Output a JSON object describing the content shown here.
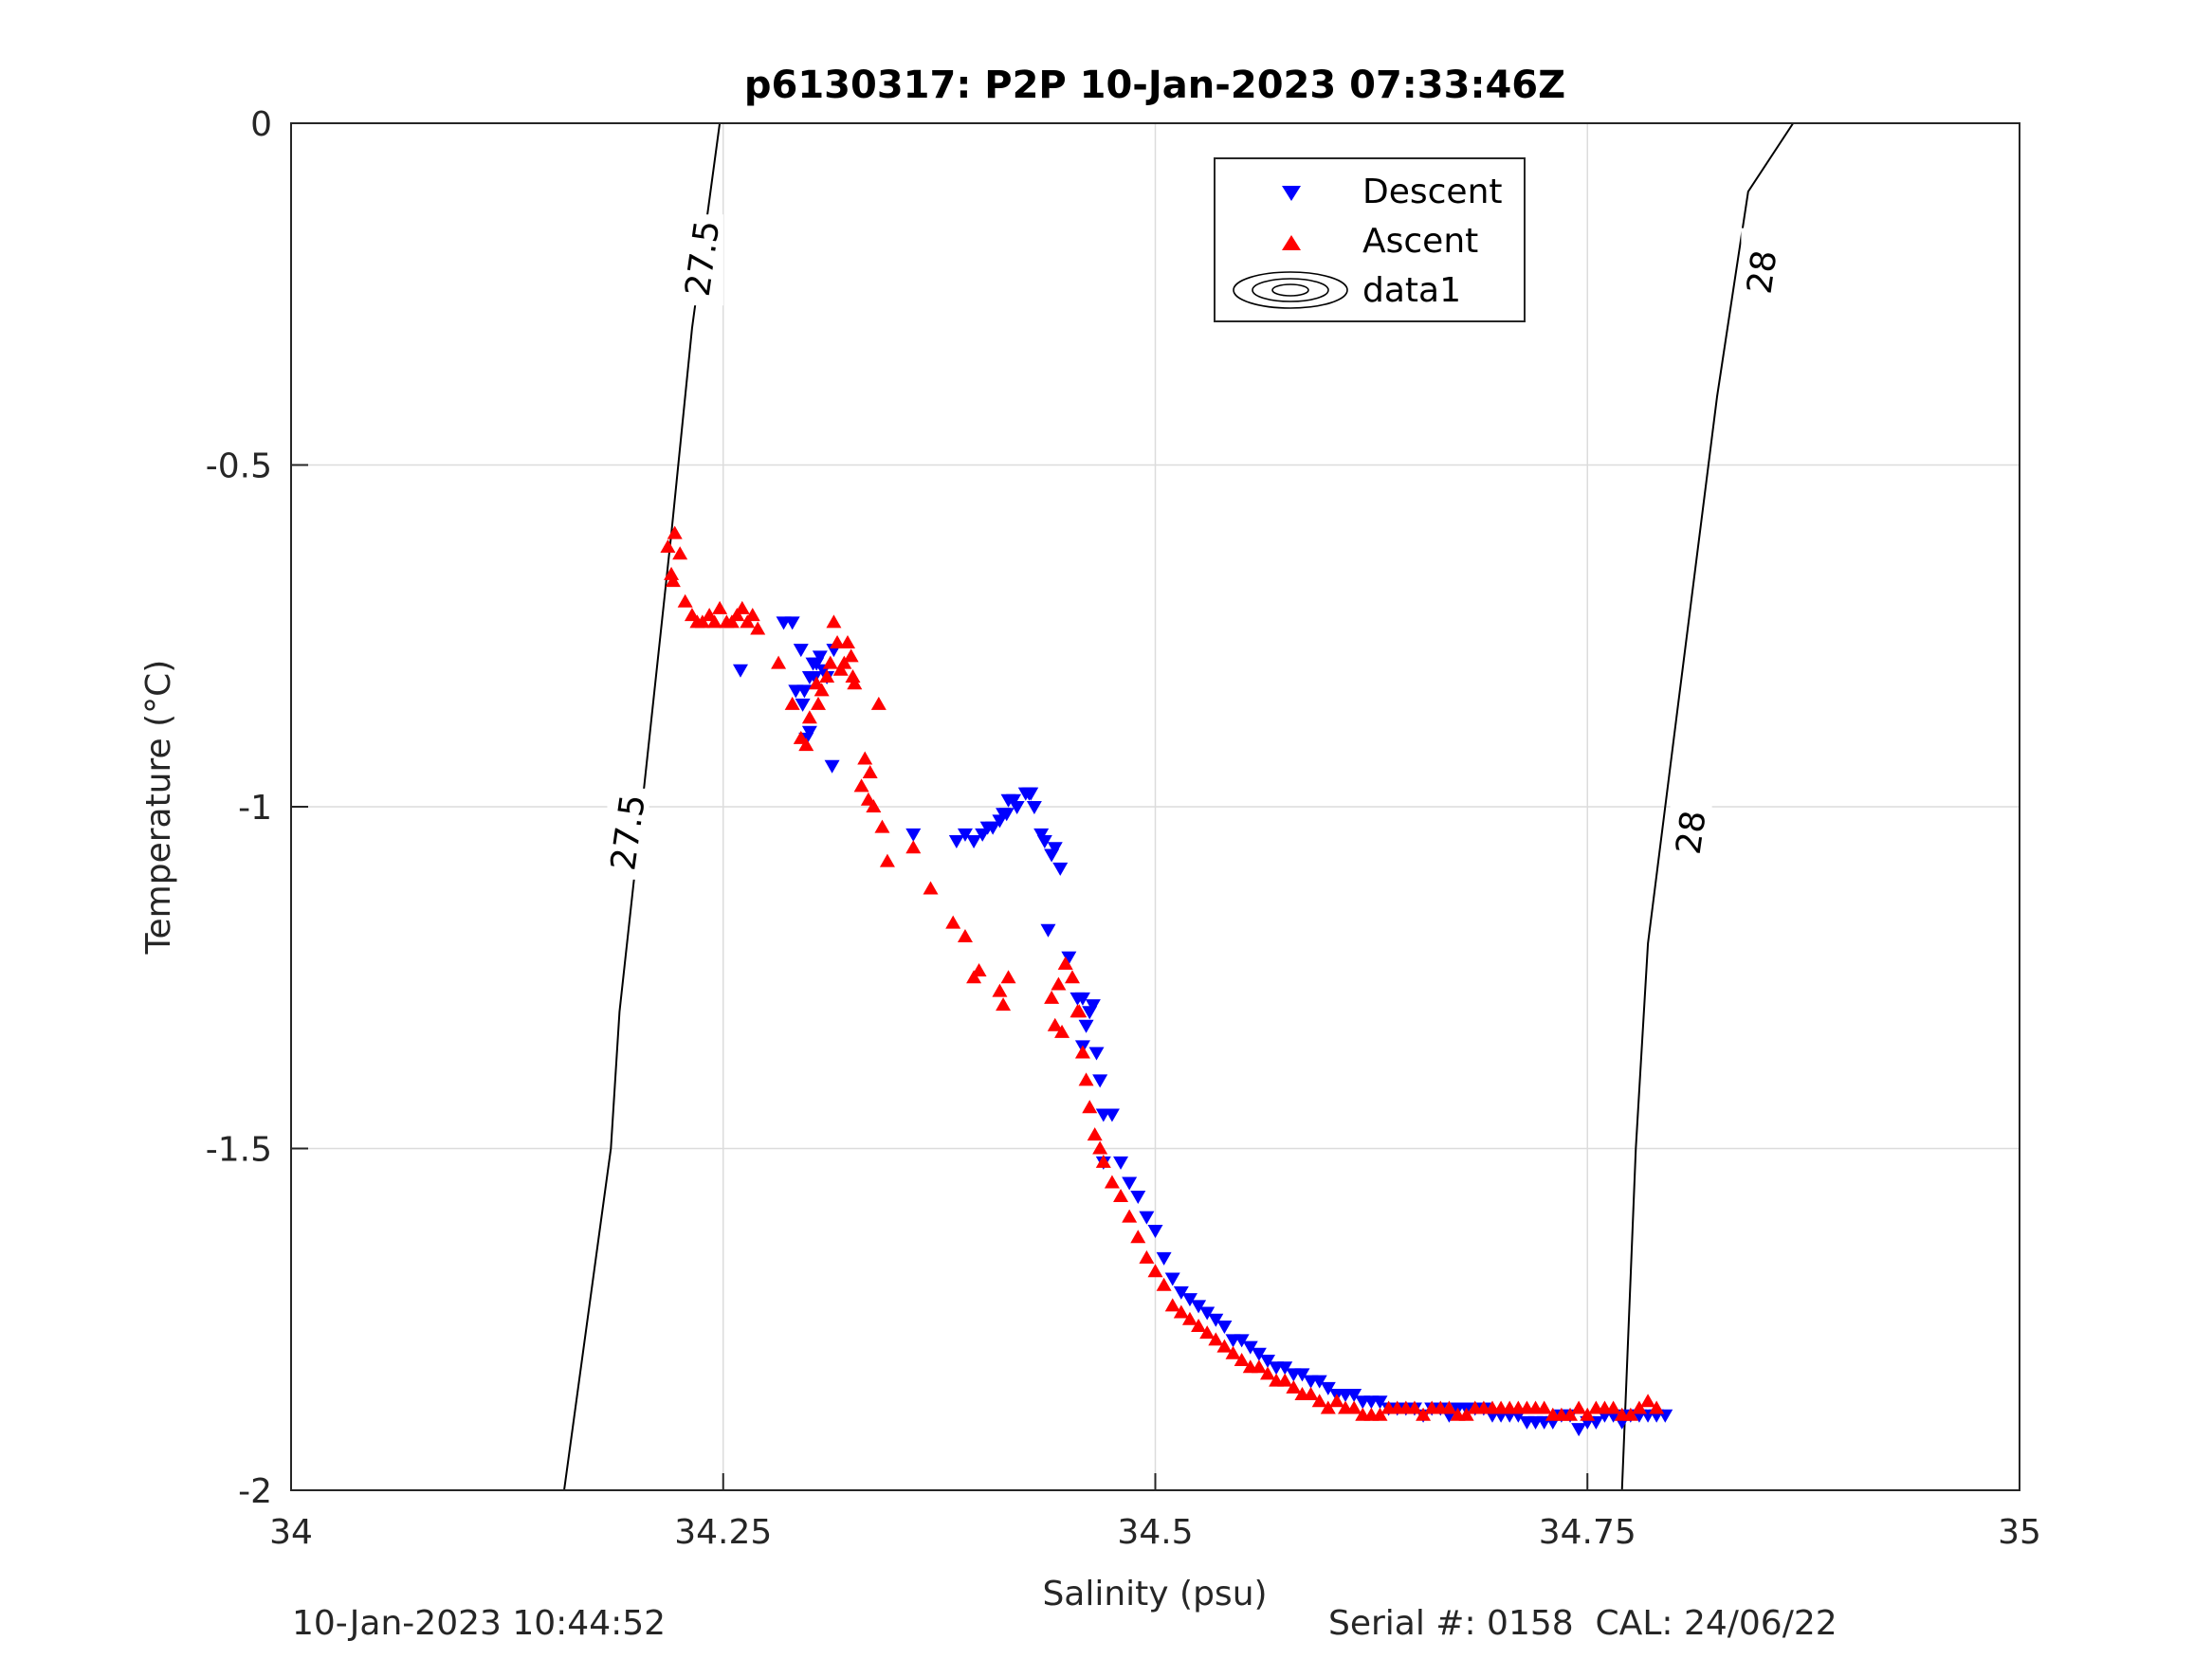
{
  "chart_data": {
    "type": "scatter",
    "title": "p6130317: P2P 10-Jan-2023 07:33:46Z",
    "xlabel": "Salinity (psu)",
    "ylabel": "Temperature (°C)",
    "xlim": [
      34,
      35
    ],
    "ylim": [
      -2,
      0
    ],
    "xticks": [
      34,
      34.25,
      34.5,
      34.75,
      35
    ],
    "xtick_labels": [
      "34",
      "34.25",
      "34.5",
      "34.75",
      "35"
    ],
    "yticks": [
      0,
      -0.5,
      -1,
      -1.5,
      -2
    ],
    "ytick_labels": [
      "0",
      "-0.5",
      "-1",
      "-1.5",
      "-2"
    ],
    "grid": true,
    "legend": {
      "placement": "top-center",
      "entries": [
        {
          "label": "Descent",
          "marker": "triangle-down",
          "color": "#0000ff"
        },
        {
          "label": "Ascent",
          "marker": "triangle-up",
          "color": "#ff0000"
        },
        {
          "label": "data1",
          "marker": "contour",
          "color": "#000000"
        }
      ]
    },
    "contours": [
      {
        "level_label": "27.5",
        "points": [
          [
            34.158,
            -2
          ],
          [
            34.185,
            -1.5
          ],
          [
            34.19,
            -1.3
          ],
          [
            34.203,
            -1.0
          ],
          [
            34.22,
            -0.6
          ],
          [
            34.232,
            -0.3
          ],
          [
            34.248,
            0
          ]
        ],
        "label_positions": [
          [
            34.195,
            -1.04
          ],
          [
            34.238,
            -0.2
          ]
        ]
      },
      {
        "level_label": "28",
        "points": [
          [
            34.77,
            -2
          ],
          [
            34.778,
            -1.5
          ],
          [
            34.785,
            -1.2
          ],
          [
            34.8,
            -0.9
          ],
          [
            34.825,
            -0.4
          ],
          [
            34.843,
            -0.1
          ],
          [
            34.869,
            0
          ]
        ],
        "label_positions": [
          [
            34.81,
            -1.04
          ],
          [
            34.851,
            -0.22
          ]
        ]
      }
    ],
    "series": [
      {
        "name": "Descent",
        "marker": "triangle-down",
        "color": "#0000ff",
        "x": [
          34.285,
          34.29,
          34.292,
          34.296,
          34.297,
          34.298,
          34.3,
          34.302,
          34.303,
          34.304,
          34.306,
          34.308,
          34.31,
          34.295,
          34.314,
          34.26,
          34.3,
          34.313,
          34.36,
          34.385,
          34.39,
          34.395,
          34.4,
          34.403,
          34.406,
          34.41,
          34.412,
          34.414,
          34.415,
          34.418,
          34.42,
          34.425,
          34.427,
          34.428,
          34.43,
          34.434,
          34.436,
          34.44,
          34.442,
          34.445,
          34.438,
          34.45,
          34.455,
          34.458,
          34.46,
          34.462,
          34.464,
          34.458,
          34.466,
          34.468,
          34.47,
          34.475,
          34.47,
          34.48,
          34.485,
          34.49,
          34.495,
          34.5,
          34.505,
          34.51,
          34.515,
          34.52,
          34.525,
          34.53,
          34.535,
          34.54,
          34.545,
          34.55,
          34.555,
          34.56,
          34.565,
          34.57,
          34.575,
          34.58,
          34.585,
          34.59,
          34.595,
          34.6,
          34.605,
          34.61,
          34.615,
          34.62,
          34.625,
          34.63,
          34.635,
          34.64,
          34.645,
          34.65,
          34.655,
          34.66,
          34.665,
          34.67,
          34.675,
          34.68,
          34.685,
          34.69,
          34.695,
          34.7,
          34.705,
          34.71,
          34.715,
          34.72,
          34.725,
          34.73,
          34.735,
          34.74,
          34.745,
          34.75,
          34.755,
          34.76,
          34.765,
          34.77,
          34.775,
          34.78,
          34.785,
          34.79,
          34.795
        ],
        "y": [
          -0.73,
          -0.73,
          -0.83,
          -0.85,
          -0.83,
          -0.9,
          -0.81,
          -0.79,
          -0.81,
          -0.79,
          -0.78,
          -0.8,
          -0.81,
          -0.77,
          -0.77,
          -0.8,
          -0.89,
          -0.94,
          -1.04,
          -1.05,
          -1.04,
          -1.05,
          -1.04,
          -1.03,
          -1.03,
          -1.02,
          -1.01,
          -1.01,
          -0.99,
          -0.99,
          -1.0,
          -0.98,
          -0.98,
          -0.98,
          -1.0,
          -1.04,
          -1.05,
          -1.07,
          -1.06,
          -1.09,
          -1.18,
          -1.22,
          -1.28,
          -1.28,
          -1.32,
          -1.3,
          -1.29,
          -1.35,
          -1.36,
          -1.4,
          -1.45,
          -1.45,
          -1.52,
          -1.52,
          -1.55,
          -1.57,
          -1.6,
          -1.62,
          -1.66,
          -1.69,
          -1.71,
          -1.72,
          -1.73,
          -1.74,
          -1.75,
          -1.76,
          -1.78,
          -1.78,
          -1.79,
          -1.8,
          -1.81,
          -1.82,
          -1.82,
          -1.83,
          -1.83,
          -1.84,
          -1.84,
          -1.85,
          -1.86,
          -1.86,
          -1.86,
          -1.87,
          -1.87,
          -1.87,
          -1.88,
          -1.88,
          -1.88,
          -1.88,
          -1.89,
          -1.88,
          -1.88,
          -1.89,
          -1.88,
          -1.88,
          -1.88,
          -1.88,
          -1.89,
          -1.89,
          -1.89,
          -1.89,
          -1.9,
          -1.9,
          -1.9,
          -1.9,
          -1.89,
          -1.89,
          -1.91,
          -1.9,
          -1.9,
          -1.89,
          -1.89,
          -1.9,
          -1.89,
          -1.89,
          -1.89,
          -1.89,
          -1.89
        ]
      },
      {
        "name": "Ascent",
        "marker": "triangle-up",
        "color": "#ff0000",
        "x": [
          34.218,
          34.22,
          34.221,
          34.222,
          34.225,
          34.228,
          34.232,
          34.235,
          34.238,
          34.242,
          34.245,
          34.248,
          34.252,
          34.255,
          34.258,
          34.261,
          34.264,
          34.267,
          34.27,
          34.282,
          34.29,
          34.295,
          34.3,
          34.298,
          34.304,
          34.305,
          34.307,
          34.31,
          34.312,
          34.314,
          34.316,
          34.318,
          34.32,
          34.322,
          34.324,
          34.325,
          34.326,
          34.33,
          34.332,
          34.334,
          34.335,
          34.337,
          34.34,
          34.342,
          34.345,
          34.36,
          34.37,
          34.383,
          34.39,
          34.395,
          34.398,
          34.41,
          34.412,
          34.415,
          34.44,
          34.442,
          34.444,
          34.446,
          34.448,
          34.452,
          34.455,
          34.456,
          34.458,
          34.46,
          34.462,
          34.465,
          34.468,
          34.47,
          34.475,
          34.48,
          34.485,
          34.49,
          34.495,
          34.5,
          34.505,
          34.51,
          34.515,
          34.52,
          34.525,
          34.53,
          34.535,
          34.54,
          34.545,
          34.55,
          34.555,
          34.56,
          34.565,
          34.57,
          34.575,
          34.58,
          34.585,
          34.59,
          34.595,
          34.6,
          34.605,
          34.61,
          34.615,
          34.62,
          34.625,
          34.63,
          34.635,
          34.64,
          34.645,
          34.65,
          34.655,
          34.66,
          34.665,
          34.67,
          34.675,
          34.68,
          34.685,
          34.69,
          34.695,
          34.7,
          34.705,
          34.71,
          34.715,
          34.72,
          34.725,
          34.73,
          34.735,
          34.74,
          34.745,
          34.75,
          34.755,
          34.76,
          34.765,
          34.77,
          34.775,
          34.78,
          34.785,
          34.79
        ],
        "y": [
          -0.62,
          -0.66,
          -0.67,
          -0.6,
          -0.63,
          -0.7,
          -0.72,
          -0.73,
          -0.73,
          -0.72,
          -0.73,
          -0.71,
          -0.73,
          -0.73,
          -0.72,
          -0.71,
          -0.73,
          -0.72,
          -0.74,
          -0.79,
          -0.85,
          -0.9,
          -0.87,
          -0.91,
          -0.82,
          -0.85,
          -0.83,
          -0.81,
          -0.79,
          -0.73,
          -0.76,
          -0.8,
          -0.79,
          -0.76,
          -0.78,
          -0.81,
          -0.82,
          -0.97,
          -0.93,
          -0.99,
          -0.95,
          -1.0,
          -0.85,
          -1.03,
          -1.08,
          -1.06,
          -1.12,
          -1.17,
          -1.19,
          -1.25,
          -1.24,
          -1.27,
          -1.29,
          -1.25,
          -1.28,
          -1.32,
          -1.26,
          -1.33,
          -1.23,
          -1.25,
          -1.3,
          -1.3,
          -1.36,
          -1.4,
          -1.44,
          -1.48,
          -1.5,
          -1.52,
          -1.55,
          -1.57,
          -1.6,
          -1.63,
          -1.66,
          -1.68,
          -1.7,
          -1.73,
          -1.74,
          -1.75,
          -1.76,
          -1.77,
          -1.78,
          -1.79,
          -1.8,
          -1.81,
          -1.82,
          -1.82,
          -1.83,
          -1.84,
          -1.84,
          -1.85,
          -1.86,
          -1.86,
          -1.87,
          -1.88,
          -1.87,
          -1.88,
          -1.88,
          -1.89,
          -1.89,
          -1.89,
          -1.88,
          -1.88,
          -1.88,
          -1.88,
          -1.89,
          -1.88,
          -1.88,
          -1.88,
          -1.89,
          -1.89,
          -1.88,
          -1.88,
          -1.88,
          -1.88,
          -1.88,
          -1.88,
          -1.88,
          -1.88,
          -1.88,
          -1.89,
          -1.89,
          -1.89,
          -1.88,
          -1.89,
          -1.88,
          -1.88,
          -1.88,
          -1.89,
          -1.89,
          -1.88,
          -1.87,
          -1.88
        ]
      }
    ]
  },
  "footer": {
    "date_text": "10-Jan-2023 10:44:52",
    "serial_text": "Serial #: 0158  CAL: 24/06/22"
  }
}
